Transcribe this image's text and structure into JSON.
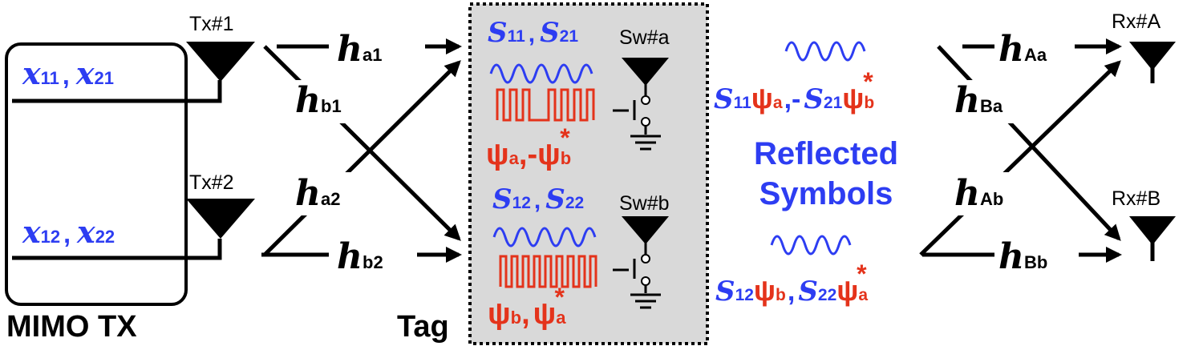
{
  "colors": {
    "blue": "#2d3df2",
    "red": "#e4331b",
    "black": "#000000",
    "tag_bg": "#d9d9d9"
  },
  "mimo_tx": {
    "label": "MIMO TX",
    "symbols_1": {
      "a": "x",
      "a_sub": "11",
      "sep": ",",
      "b": "x",
      "b_sub": "21"
    },
    "symbols_2": {
      "a": "x",
      "a_sub": "12",
      "sep": ",",
      "b": "x",
      "b_sub": "22"
    }
  },
  "tx_antennas": [
    "Tx#1",
    "Tx#2"
  ],
  "rx_antennas": [
    "Rx#A",
    "Rx#B"
  ],
  "channels_in": [
    {
      "h": "h",
      "sub": "a1"
    },
    {
      "h": "h",
      "sub": "b1"
    },
    {
      "h": "h",
      "sub": "a2"
    },
    {
      "h": "h",
      "sub": "b2"
    }
  ],
  "channels_out": [
    {
      "h": "h",
      "sub": "Aa"
    },
    {
      "h": "h",
      "sub": "Ba"
    },
    {
      "h": "h",
      "sub": "Ab"
    },
    {
      "h": "h",
      "sub": "Bb"
    }
  ],
  "tag": {
    "label": "Tag",
    "switch_a": {
      "name": "Sw#a",
      "s1": "S",
      "s1_sub": "11",
      "sep": ",",
      "s2": "S",
      "s2_sub": "21",
      "psi1": "ψ",
      "psi1_sub": "a",
      "psi_sep": ",-",
      "psi2": "ψ",
      "psi2_sub": "b",
      "psi2_sup": "*"
    },
    "switch_b": {
      "name": "Sw#b",
      "s1": "S",
      "s1_sub": "12",
      "sep": ",",
      "s2": "S",
      "s2_sub": "22",
      "psi1": "ψ",
      "psi1_sub": "b",
      "psi_sep": ",",
      "psi2": "ψ",
      "psi2_sub": "a",
      "psi2_sup": "*"
    }
  },
  "reflected": {
    "title_line1": "Reflected",
    "title_line2": "Symbols",
    "sym_a": {
      "s1": "S",
      "s1_sub": "11",
      "p1": "ψ",
      "p1_sub": "a",
      "sep": ",-",
      "s2": "S",
      "s2_sub": "21",
      "p2": "ψ",
      "p2_sub": "b",
      "p2_sup": "*"
    },
    "sym_b": {
      "s1": "S",
      "s1_sub": "12",
      "p1": "ψ",
      "p1_sub": "b",
      "sep": ",",
      "s2": "S",
      "s2_sub": "22",
      "p2": "ψ",
      "p2_sub": "a",
      "p2_sup": "*"
    }
  }
}
